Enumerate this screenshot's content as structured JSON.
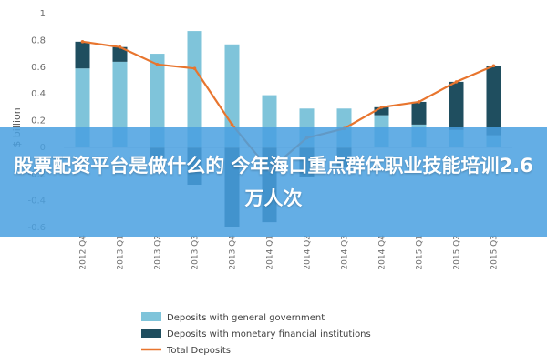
{
  "chart_data": {
    "type": "bar",
    "categories": [
      "2012 Q4",
      "2013 Q1",
      "2013 Q2",
      "2013 Q3",
      "2013 Q4",
      "2014 Q1",
      "2014 Q2",
      "2014 Q3",
      "2014 Q4",
      "2015 Q1",
      "2015 Q2",
      "2015 Q3"
    ],
    "series": [
      {
        "name": "Deposits with general government",
        "kind": "bar",
        "color": "#7fc4da",
        "values": [
          0.59,
          0.64,
          0.7,
          0.87,
          0.77,
          0.39,
          0.29,
          0.29,
          0.24,
          0.17,
          0.13,
          0.09
        ]
      },
      {
        "name": "Deposits with monetary financial institutions",
        "kind": "bar",
        "color": "#1f4e5f",
        "values": [
          0.2,
          0.11,
          -0.08,
          -0.28,
          -0.6,
          -0.56,
          -0.22,
          -0.15,
          0.06,
          0.17,
          0.36,
          0.52
        ]
      },
      {
        "name": "Total Deposits",
        "kind": "line",
        "color": "#e8752e",
        "values": [
          0.79,
          0.75,
          0.62,
          0.59,
          0.17,
          -0.17,
          0.07,
          0.14,
          0.3,
          0.34,
          0.49,
          0.61
        ]
      }
    ],
    "ylabel": "$ billion",
    "ylim": [
      -0.6,
      1.0
    ],
    "yticks": [
      "1",
      "0.8",
      "0.6",
      "0.4",
      "0.2",
      "0",
      "-0.2",
      "-0.4",
      "-0.6"
    ],
    "grid": false,
    "legend_position": "bottom"
  },
  "overlay": {
    "caption": "股票配资平台是做什么的 今年海口重点群体职业技能培训2.6万人次"
  }
}
